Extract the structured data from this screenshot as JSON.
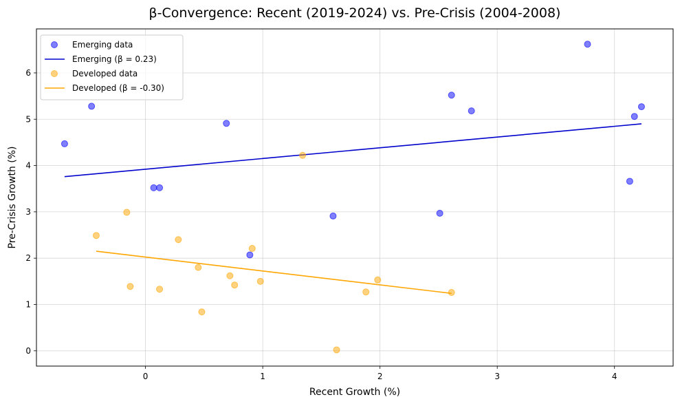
{
  "chart_data": {
    "type": "scatter",
    "title": "β-Convergence: Recent (2019-2024) vs. Pre-Crisis (2004-2008)",
    "xlabel": "Recent Growth (%)",
    "ylabel": "Pre-Crisis Growth (%)",
    "xlim": [
      -0.93,
      4.5
    ],
    "ylim": [
      -0.33,
      6.95
    ],
    "xticks": [
      0,
      1,
      2,
      3,
      4
    ],
    "yticks": [
      0,
      1,
      2,
      3,
      4,
      5,
      6
    ],
    "grid": true,
    "legend_position": "top-left",
    "series": [
      {
        "name": "Emerging data",
        "kind": "scatter",
        "color": "#0000ff",
        "points": [
          [
            -0.69,
            4.47
          ],
          [
            -0.46,
            5.28
          ],
          [
            0.07,
            3.52
          ],
          [
            0.12,
            3.52
          ],
          [
            0.69,
            4.91
          ],
          [
            0.89,
            2.07
          ],
          [
            1.6,
            2.91
          ],
          [
            2.51,
            2.97
          ],
          [
            2.61,
            5.52
          ],
          [
            2.78,
            5.18
          ],
          [
            3.77,
            6.62
          ],
          [
            4.13,
            3.66
          ],
          [
            4.17,
            5.06
          ],
          [
            4.23,
            5.27
          ]
        ]
      },
      {
        "name": "Emerging (β = 0.23)",
        "kind": "line",
        "color": "#0000cd",
        "points": [
          [
            -0.69,
            3.76
          ],
          [
            4.23,
            4.9
          ]
        ]
      },
      {
        "name": "Developed data",
        "kind": "scatter",
        "color": "#ffa500",
        "points": [
          [
            -0.42,
            2.49
          ],
          [
            -0.16,
            2.99
          ],
          [
            -0.13,
            1.39
          ],
          [
            0.12,
            1.33
          ],
          [
            0.28,
            2.4
          ],
          [
            0.45,
            1.8
          ],
          [
            0.48,
            0.84
          ],
          [
            0.72,
            1.62
          ],
          [
            0.76,
            1.42
          ],
          [
            0.91,
            2.21
          ],
          [
            0.98,
            1.5
          ],
          [
            1.34,
            4.22
          ],
          [
            1.63,
            0.02
          ],
          [
            1.88,
            1.27
          ],
          [
            1.98,
            1.53
          ],
          [
            2.61,
            1.26
          ]
        ]
      },
      {
        "name": "Developed (β = -0.30)",
        "kind": "line",
        "color": "#ffa500",
        "points": [
          [
            -0.42,
            2.15
          ],
          [
            2.61,
            1.24
          ]
        ]
      }
    ]
  }
}
